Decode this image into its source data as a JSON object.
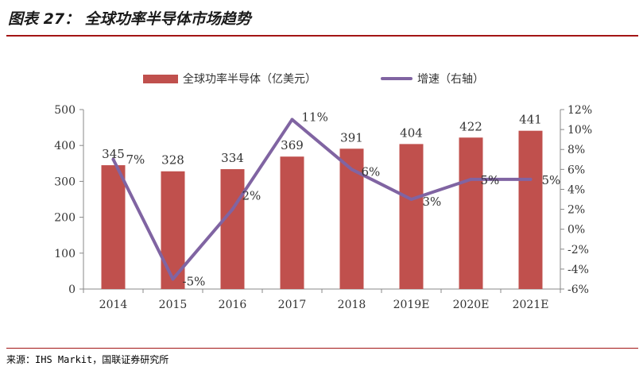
{
  "header": {
    "title": "图表 27：   全球功率半导体市场趋势"
  },
  "legend": {
    "bar_label": "全球功率半导体（亿美元）",
    "line_label": "增速（右轴）"
  },
  "footer": {
    "source": "来源：IHS Markit，国联证券研究所"
  },
  "colors": {
    "bar": "#c0504d",
    "line": "#8064a2",
    "accent": "#a31515"
  },
  "chart_data": {
    "type": "bar",
    "categories": [
      "2014",
      "2015",
      "2016",
      "2017",
      "2018",
      "2019E",
      "2020E",
      "2021E"
    ],
    "series": [
      {
        "name": "全球功率半导体（亿美元）",
        "type": "bar",
        "axis": "left",
        "values": [
          345,
          328,
          334,
          369,
          391,
          404,
          422,
          441
        ],
        "labels": [
          "345",
          "328",
          "334",
          "369",
          "391",
          "404",
          "422",
          "441"
        ]
      },
      {
        "name": "增速（右轴）",
        "type": "line",
        "axis": "right",
        "values": [
          7,
          -5,
          2,
          11,
          6,
          3,
          5,
          5
        ],
        "labels": [
          "7%",
          "-5%",
          "2%",
          "11%",
          "6%",
          "3%",
          "5%",
          "5%"
        ]
      }
    ],
    "y_left": {
      "lim": [
        0,
        500
      ],
      "ticks": [
        "0",
        "100",
        "200",
        "300",
        "400",
        "500"
      ]
    },
    "y_right": {
      "lim": [
        -6,
        12
      ],
      "ticks": [
        "-6%",
        "-4%",
        "-2%",
        "0%",
        "2%",
        "4%",
        "6%",
        "8%",
        "10%",
        "12%"
      ]
    },
    "grid": false,
    "legend_position": "top"
  }
}
